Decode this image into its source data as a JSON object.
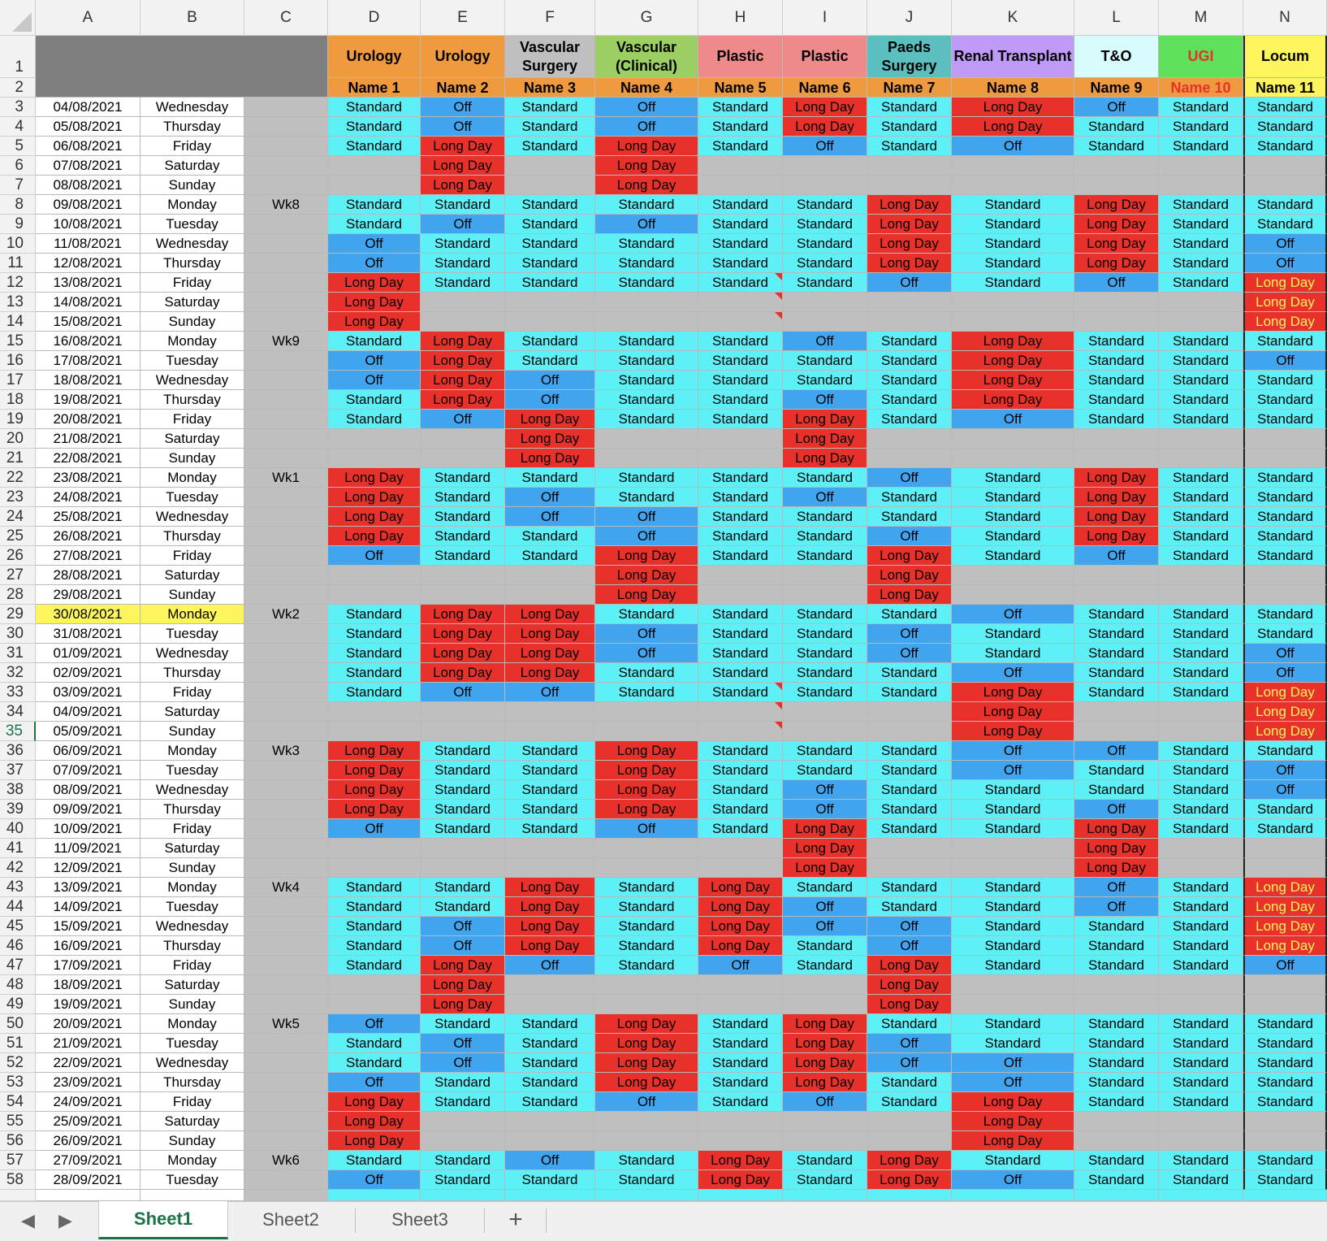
{
  "tabs": {
    "sheet1": "Sheet1",
    "sheet2": "Sheet2",
    "sheet3": "Sheet3",
    "add": "+",
    "prev": "◀",
    "next": "▶"
  },
  "columns": [
    "A",
    "B",
    "C",
    "D",
    "E",
    "F",
    "G",
    "H",
    "I",
    "J",
    "K",
    "L",
    "M",
    "N"
  ],
  "selected_row": 35,
  "headers": [
    {
      "title": "Urology",
      "name": "Name 1",
      "bg": "#f09a40",
      "name_bg": "#f09a40"
    },
    {
      "title": "Urology",
      "name": "Name 2",
      "bg": "#f09a40",
      "name_bg": "#f09a40"
    },
    {
      "title": "Vascular Surgery",
      "name": "Name 3",
      "bg": "#bfbfbf",
      "name_bg": "#f09a40"
    },
    {
      "title": "Vascular (Clinical)",
      "name": "Name 4",
      "bg": "#9ccf63",
      "name_bg": "#f09a40"
    },
    {
      "title": "Plastic",
      "name": "Name 5",
      "bg": "#ee8a8a",
      "name_bg": "#f09a40"
    },
    {
      "title": "Plastic",
      "name": "Name 6",
      "bg": "#ee8a8a",
      "name_bg": "#f09a40"
    },
    {
      "title": "Paeds Surgery",
      "name": "Name 7",
      "bg": "#5bbfbf",
      "name_bg": "#f09a40"
    },
    {
      "title": "Renal Transplant",
      "name": "Name 8",
      "bg": "#c09af7",
      "name_bg": "#f09a40"
    },
    {
      "title": "T&O",
      "name": "Name 9",
      "bg": "#d8fbfd",
      "name_bg": "#f09a40"
    },
    {
      "title": "UGI",
      "name": "Name 10",
      "bg": "#5ee05a",
      "name_bg": "#f09a40",
      "title_color": "#e8312a",
      "name_color": "#e8312a"
    },
    {
      "title": "Locum",
      "name": "Name 11",
      "bg": "#fcf55e",
      "name_bg": "#fcf55e"
    }
  ],
  "legend": {
    "S": "Standard",
    "O": "Off",
    "L": "Long Day"
  },
  "rows": [
    {
      "n": 3,
      "date": "04/08/2021",
      "day": "Wednesday",
      "wk": "",
      "s": "S O S O S L S L O S S"
    },
    {
      "n": 4,
      "date": "05/08/2021",
      "day": "Thursday",
      "wk": "",
      "s": "S O S O S L S L S S S"
    },
    {
      "n": 5,
      "date": "06/08/2021",
      "day": "Friday",
      "wk": "",
      "s": "S L S L S O S O S S S"
    },
    {
      "n": 6,
      "date": "07/08/2021",
      "day": "Saturday",
      "wk": "",
      "s": "- L - L - - - - - - -"
    },
    {
      "n": 7,
      "date": "08/08/2021",
      "day": "Sunday",
      "wk": "",
      "s": "- L - L - - - - - - -"
    },
    {
      "n": 8,
      "date": "09/08/2021",
      "day": "Monday",
      "wk": "Wk8",
      "s": "S S S S S S L S L S S"
    },
    {
      "n": 9,
      "date": "10/08/2021",
      "day": "Tuesday",
      "wk": "",
      "s": "S O S O S S L S L S S"
    },
    {
      "n": 10,
      "date": "11/08/2021",
      "day": "Wednesday",
      "wk": "",
      "s": "O S S S S S L S L S O"
    },
    {
      "n": 11,
      "date": "12/08/2021",
      "day": "Thursday",
      "wk": "",
      "s": "O S S S S S L S L S O"
    },
    {
      "n": 12,
      "date": "13/08/2021",
      "day": "Friday",
      "wk": "",
      "s": "L S S S S S O S O S L"
    },
    {
      "n": 13,
      "date": "14/08/2021",
      "day": "Saturday",
      "wk": "",
      "s": "L - - - - - - - - - L"
    },
    {
      "n": 14,
      "date": "15/08/2021",
      "day": "Sunday",
      "wk": "",
      "s": "L - - - - - - - - - L"
    },
    {
      "n": 15,
      "date": "16/08/2021",
      "day": "Monday",
      "wk": "Wk9",
      "s": "S L S S S O S L S S S"
    },
    {
      "n": 16,
      "date": "17/08/2021",
      "day": "Tuesday",
      "wk": "",
      "s": "O L S S S S S L S S O"
    },
    {
      "n": 17,
      "date": "18/08/2021",
      "day": "Wednesday",
      "wk": "",
      "s": "O L O S S S S L S S S"
    },
    {
      "n": 18,
      "date": "19/08/2021",
      "day": "Thursday",
      "wk": "",
      "s": "S L O S S O S L S S S"
    },
    {
      "n": 19,
      "date": "20/08/2021",
      "day": "Friday",
      "wk": "",
      "s": "S O L S S L S O S S S"
    },
    {
      "n": 20,
      "date": "21/08/2021",
      "day": "Saturday",
      "wk": "",
      "s": "- - L - - L - - - - -"
    },
    {
      "n": 21,
      "date": "22/08/2021",
      "day": "Sunday",
      "wk": "",
      "s": "- - L - - L - - - - -"
    },
    {
      "n": 22,
      "date": "23/08/2021",
      "day": "Monday",
      "wk": "Wk1",
      "s": "L S S S S S O S L S S"
    },
    {
      "n": 23,
      "date": "24/08/2021",
      "day": "Tuesday",
      "wk": "",
      "s": "L S O S S O S S L S S"
    },
    {
      "n": 24,
      "date": "25/08/2021",
      "day": "Wednesday",
      "wk": "",
      "s": "L S O O S S S S L S S"
    },
    {
      "n": 25,
      "date": "26/08/2021",
      "day": "Thursday",
      "wk": "",
      "s": "L S S O S S O S L S S"
    },
    {
      "n": 26,
      "date": "27/08/2021",
      "day": "Friday",
      "wk": "",
      "s": "O S S L S S L S O S S"
    },
    {
      "n": 27,
      "date": "28/08/2021",
      "day": "Saturday",
      "wk": "",
      "s": "- - - L - - L - - - -"
    },
    {
      "n": 28,
      "date": "29/08/2021",
      "day": "Sunday",
      "wk": "",
      "s": "- - - L - - L - - - -"
    },
    {
      "n": 29,
      "date": "30/08/2021",
      "day": "Monday",
      "wk": "Wk2",
      "s": "S L L S S S S O S S S",
      "highlight": true
    },
    {
      "n": 30,
      "date": "31/08/2021",
      "day": "Tuesday",
      "wk": "",
      "s": "S L L O S S O S S S S"
    },
    {
      "n": 31,
      "date": "01/09/2021",
      "day": "Wednesday",
      "wk": "",
      "s": "S L L O S S O S S S O"
    },
    {
      "n": 32,
      "date": "02/09/2021",
      "day": "Thursday",
      "wk": "",
      "s": "S L L S S S S O S S O"
    },
    {
      "n": 33,
      "date": "03/09/2021",
      "day": "Friday",
      "wk": "",
      "s": "S O O S S S S L S S L"
    },
    {
      "n": 34,
      "date": "04/09/2021",
      "day": "Saturday",
      "wk": "",
      "s": "- - - - - - - L - - L"
    },
    {
      "n": 35,
      "date": "05/09/2021",
      "day": "Sunday",
      "wk": "",
      "s": "- - - - - - - L - - L"
    },
    {
      "n": 36,
      "date": "06/09/2021",
      "day": "Monday",
      "wk": "Wk3",
      "s": "L S S L S S S O O S S"
    },
    {
      "n": 37,
      "date": "07/09/2021",
      "day": "Tuesday",
      "wk": "",
      "s": "L S S L S S S O S S O"
    },
    {
      "n": 38,
      "date": "08/09/2021",
      "day": "Wednesday",
      "wk": "",
      "s": "L S S L S O S S S S O"
    },
    {
      "n": 39,
      "date": "09/09/2021",
      "day": "Thursday",
      "wk": "",
      "s": "L S S L S O S S O S S"
    },
    {
      "n": 40,
      "date": "10/09/2021",
      "day": "Friday",
      "wk": "",
      "s": "O S S O S L S S L S S"
    },
    {
      "n": 41,
      "date": "11/09/2021",
      "day": "Saturday",
      "wk": "",
      "s": "- - - - - L - - L - -"
    },
    {
      "n": 42,
      "date": "12/09/2021",
      "day": "Sunday",
      "wk": "",
      "s": "- - - - - L - - L - -"
    },
    {
      "n": 43,
      "date": "13/09/2021",
      "day": "Monday",
      "wk": "Wk4",
      "s": "S S L S L S S S O S L"
    },
    {
      "n": 44,
      "date": "14/09/2021",
      "day": "Tuesday",
      "wk": "",
      "s": "S S L S L O S S O S L"
    },
    {
      "n": 45,
      "date": "15/09/2021",
      "day": "Wednesday",
      "wk": "",
      "s": "S O L S L O O S S S L"
    },
    {
      "n": 46,
      "date": "16/09/2021",
      "day": "Thursday",
      "wk": "",
      "s": "S O L S L S O S S S L"
    },
    {
      "n": 47,
      "date": "17/09/2021",
      "day": "Friday",
      "wk": "",
      "s": "S L O S O S L S S S O"
    },
    {
      "n": 48,
      "date": "18/09/2021",
      "day": "Saturday",
      "wk": "",
      "s": "- L - - - - L - - - -"
    },
    {
      "n": 49,
      "date": "19/09/2021",
      "day": "Sunday",
      "wk": "",
      "s": "- L - - - - L - - - -"
    },
    {
      "n": 50,
      "date": "20/09/2021",
      "day": "Monday",
      "wk": "Wk5",
      "s": "O S S L S L S S S S S"
    },
    {
      "n": 51,
      "date": "21/09/2021",
      "day": "Tuesday",
      "wk": "",
      "s": "S O S L S L O S S S S"
    },
    {
      "n": 52,
      "date": "22/09/2021",
      "day": "Wednesday",
      "wk": "",
      "s": "S O S L S L O O S S S"
    },
    {
      "n": 53,
      "date": "23/09/2021",
      "day": "Thursday",
      "wk": "",
      "s": "O S S L S L S O S S S"
    },
    {
      "n": 54,
      "date": "24/09/2021",
      "day": "Friday",
      "wk": "",
      "s": "L S S O S O S L S S S"
    },
    {
      "n": 55,
      "date": "25/09/2021",
      "day": "Saturday",
      "wk": "",
      "s": "L - - - - - - L - - -"
    },
    {
      "n": 56,
      "date": "26/09/2021",
      "day": "Sunday",
      "wk": "",
      "s": "L - - - - - - L - - -"
    },
    {
      "n": 57,
      "date": "27/09/2021",
      "day": "Monday",
      "wk": "Wk6",
      "s": "S S O S L S L S S S S"
    },
    {
      "n": 58,
      "date": "28/09/2021",
      "day": "Tuesday",
      "wk": "",
      "s": "O S S S L S L O S S S"
    }
  ]
}
